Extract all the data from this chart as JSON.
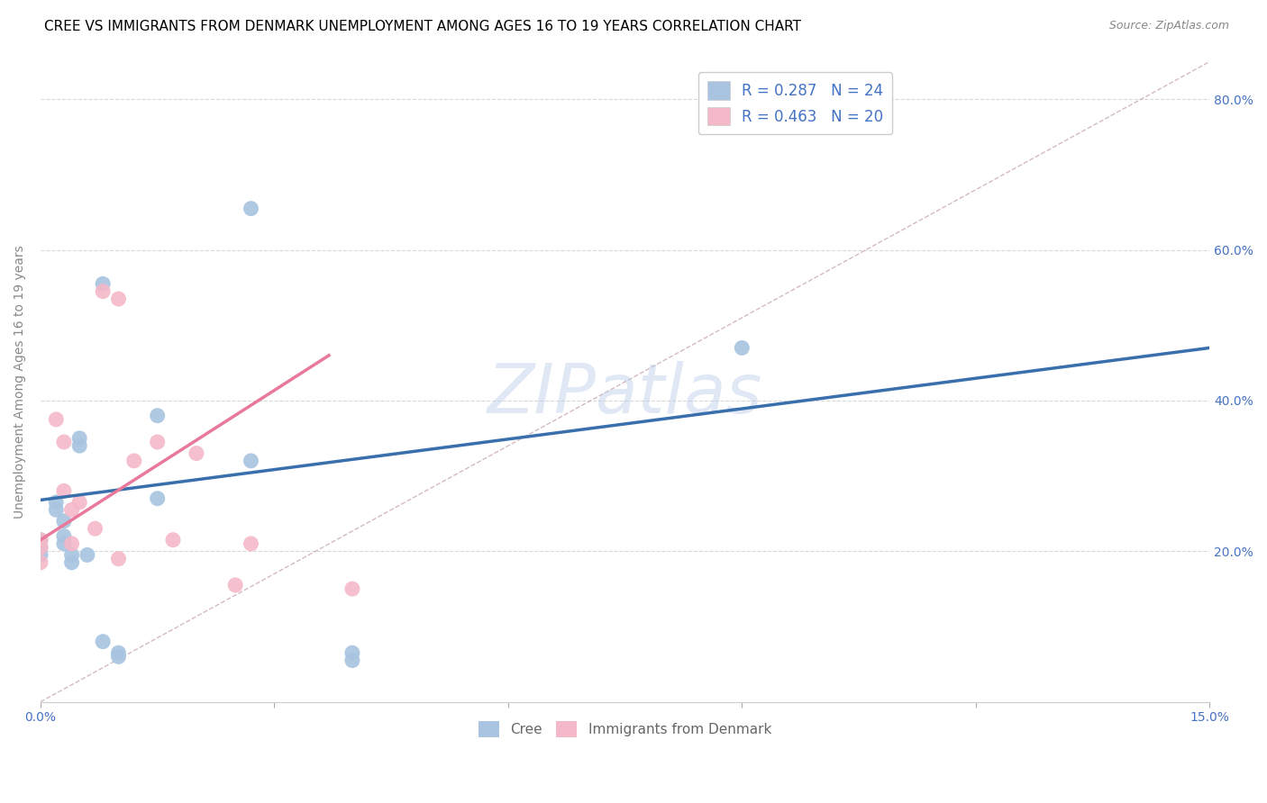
{
  "title": "CREE VS IMMIGRANTS FROM DENMARK UNEMPLOYMENT AMONG AGES 16 TO 19 YEARS CORRELATION CHART",
  "source": "Source: ZipAtlas.com",
  "ylabel": "Unemployment Among Ages 16 to 19 years",
  "xlim": [
    0.0,
    0.15
  ],
  "ylim": [
    0.0,
    0.85
  ],
  "xticks": [
    0.0,
    0.03,
    0.06,
    0.09,
    0.12,
    0.15
  ],
  "xtick_labels": [
    "0.0%",
    "",
    "",
    "",
    "",
    "15.0%"
  ],
  "ytick_positions": [
    0.2,
    0.4,
    0.6,
    0.8
  ],
  "ytick_labels": [
    "20.0%",
    "40.0%",
    "60.0%",
    "80.0%"
  ],
  "cree_R": 0.287,
  "cree_N": 24,
  "denmark_R": 0.463,
  "denmark_N": 20,
  "cree_color": "#a8c4e0",
  "denmark_color": "#f4b8c8",
  "cree_line_color": "#3a6fad",
  "denmark_line_color": "#e8799a",
  "diagonal_color": "#c8a8b8",
  "watermark": "ZIPatlas",
  "cree_points_x": [
    0.0,
    0.0,
    0.0,
    0.002,
    0.002,
    0.003,
    0.003,
    0.003,
    0.004,
    0.004,
    0.005,
    0.005,
    0.006,
    0.008,
    0.008,
    0.01,
    0.01,
    0.015,
    0.015,
    0.027,
    0.027,
    0.04,
    0.04,
    0.09
  ],
  "cree_points_y": [
    0.215,
    0.205,
    0.195,
    0.265,
    0.255,
    0.24,
    0.22,
    0.21,
    0.195,
    0.185,
    0.35,
    0.34,
    0.195,
    0.555,
    0.08,
    0.065,
    0.06,
    0.38,
    0.27,
    0.655,
    0.32,
    0.065,
    0.055,
    0.47
  ],
  "denmark_points_x": [
    0.0,
    0.0,
    0.0,
    0.002,
    0.003,
    0.003,
    0.004,
    0.004,
    0.005,
    0.007,
    0.008,
    0.01,
    0.01,
    0.012,
    0.015,
    0.017,
    0.02,
    0.025,
    0.027,
    0.04
  ],
  "denmark_points_y": [
    0.215,
    0.205,
    0.185,
    0.375,
    0.345,
    0.28,
    0.255,
    0.21,
    0.265,
    0.23,
    0.545,
    0.535,
    0.19,
    0.32,
    0.345,
    0.215,
    0.33,
    0.155,
    0.21,
    0.15
  ],
  "background_color": "#ffffff",
  "grid_color": "#d8d8d8",
  "title_fontsize": 11,
  "axis_label_fontsize": 10,
  "tick_fontsize": 10,
  "legend_fontsize": 12,
  "source_fontsize": 9,
  "cree_line_x0": 0.0,
  "cree_line_y0": 0.268,
  "cree_line_x1": 0.15,
  "cree_line_y1": 0.47,
  "denmark_line_x0": 0.0,
  "denmark_line_y0": 0.215,
  "denmark_line_x1": 0.037,
  "denmark_line_y1": 0.46
}
